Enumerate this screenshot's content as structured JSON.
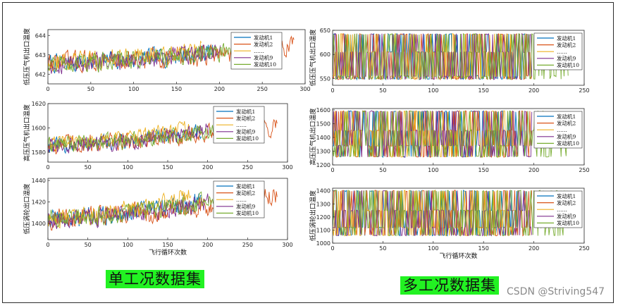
{
  "captions": {
    "single": "单工况数据集",
    "multi": "多工况数据集"
  },
  "watermark": "CSDN @Striving547",
  "colors": {
    "engine_1": "#0072bd",
    "engine_2": "#d95319",
    "ellipsis": "#edb120",
    "engine_9": "#7e2f8e",
    "engine_10": "#77ac30"
  },
  "chart_data": [
    {
      "id": "single-lpc-outlet-temp",
      "type": "line",
      "title": "",
      "ylabel": "低压压气机出口温度",
      "xlabel": "",
      "xlim": [
        0,
        300
      ],
      "ylim": [
        641.5,
        644.3
      ],
      "xticks": [
        0,
        50,
        100,
        150,
        200,
        250,
        300
      ],
      "yticks": [
        642,
        643,
        644
      ],
      "legend_position": "top-right",
      "grid": false,
      "series": [
        {
          "name": "发动机1",
          "color": "#0072bd",
          "x_range": [
            0,
            192
          ],
          "trend": [
            642.55,
            643.15
          ],
          "noise_amplitude": 0.45
        },
        {
          "name": "发动机2",
          "color": "#d95319",
          "x_range": [
            0,
            287
          ],
          "trend": [
            642.6,
            643.35
          ],
          "noise_amplitude": 0.5
        },
        {
          "name": "……",
          "color": "#edb120",
          "x_range": [
            0,
            179
          ],
          "trend": [
            642.6,
            643.3
          ],
          "noise_amplitude": 0.45
        },
        {
          "name": "发动机9",
          "color": "#7e2f8e",
          "x_range": [
            0,
            201
          ],
          "trend": [
            642.5,
            643.15
          ],
          "noise_amplitude": 0.45
        },
        {
          "name": "发动机10",
          "color": "#77ac30",
          "x_range": [
            0,
            229
          ],
          "trend": [
            642.55,
            643.3
          ],
          "noise_amplitude": 0.45
        }
      ]
    },
    {
      "id": "single-hpc-outlet-temp",
      "type": "line",
      "title": "",
      "ylabel": "高压压气机出口温度",
      "xlabel": "",
      "xlim": [
        0,
        300
      ],
      "ylim": [
        1572,
        1620
      ],
      "xticks": [
        0,
        50,
        100,
        150,
        200,
        250,
        300
      ],
      "yticks": [
        1580,
        1600,
        1620
      ],
      "legend_position": "top-right",
      "grid": false,
      "series": [
        {
          "name": "发动机1",
          "color": "#0072bd",
          "x_range": [
            0,
            192
          ],
          "trend": [
            1585,
            1597
          ],
          "noise_amplitude": 6
        },
        {
          "name": "发动机2",
          "color": "#d95319",
          "x_range": [
            0,
            287
          ],
          "trend": [
            1586,
            1602
          ],
          "noise_amplitude": 7
        },
        {
          "name": "……",
          "color": "#edb120",
          "x_range": [
            0,
            179
          ],
          "trend": [
            1586,
            1601
          ],
          "noise_amplitude": 6
        },
        {
          "name": "发动机9",
          "color": "#7e2f8e",
          "x_range": [
            0,
            201
          ],
          "trend": [
            1585,
            1598
          ],
          "noise_amplitude": 6
        },
        {
          "name": "发动机10",
          "color": "#77ac30",
          "x_range": [
            0,
            229
          ],
          "trend": [
            1586,
            1600
          ],
          "noise_amplitude": 6
        }
      ]
    },
    {
      "id": "single-lpt-outlet-temp",
      "type": "line",
      "title": "",
      "ylabel": "低压涡轮出口温度",
      "xlabel": "飞行循环次数",
      "xlim": [
        0,
        300
      ],
      "ylim": [
        1385,
        1442
      ],
      "xticks": [
        0,
        50,
        100,
        150,
        200,
        250,
        300
      ],
      "yticks": [
        1400,
        1420,
        1440
      ],
      "legend_position": "top-right",
      "grid": false,
      "series": [
        {
          "name": "发动机1",
          "color": "#0072bd",
          "x_range": [
            0,
            192
          ],
          "trend": [
            1403,
            1422
          ],
          "noise_amplitude": 8
        },
        {
          "name": "发动机2",
          "color": "#d95319",
          "x_range": [
            0,
            287
          ],
          "trend": [
            1404,
            1428
          ],
          "noise_amplitude": 9
        },
        {
          "name": "……",
          "color": "#edb120",
          "x_range": [
            0,
            179
          ],
          "trend": [
            1404,
            1426
          ],
          "noise_amplitude": 8
        },
        {
          "name": "发动机9",
          "color": "#7e2f8e",
          "x_range": [
            0,
            201
          ],
          "trend": [
            1403,
            1420
          ],
          "noise_amplitude": 8
        },
        {
          "name": "发动机10",
          "color": "#77ac30",
          "x_range": [
            0,
            229
          ],
          "trend": [
            1404,
            1424
          ],
          "noise_amplitude": 8
        }
      ]
    },
    {
      "id": "multi-lpc-outlet-temp",
      "type": "line",
      "title": "",
      "ylabel": "低压压气机出口温度",
      "xlabel": "",
      "xlim": [
        0,
        250
      ],
      "ylim": [
        536,
        650
      ],
      "xticks": [
        0,
        50,
        100,
        150,
        200,
        250
      ],
      "yticks": [
        550,
        600,
        650
      ],
      "legend_position": "top-right",
      "grid": false,
      "operating_levels": [
        549,
        555,
        605,
        642
      ],
      "series": [
        {
          "name": "发动机1",
          "color": "#0072bd",
          "x_range": [
            0,
            192
          ]
        },
        {
          "name": "发动机2",
          "color": "#d95319",
          "x_range": [
            0,
            198
          ]
        },
        {
          "name": "……",
          "color": "#edb120",
          "x_range": [
            0,
            179
          ]
        },
        {
          "name": "发动机9",
          "color": "#7e2f8e",
          "x_range": [
            0,
            198
          ]
        },
        {
          "name": "发动机10",
          "color": "#77ac30",
          "x_range": [
            0,
            234
          ]
        }
      ]
    },
    {
      "id": "multi-hpc-outlet-temp",
      "type": "line",
      "title": "",
      "ylabel": "高压压气机出口温度",
      "xlabel": "",
      "xlim": [
        0,
        250
      ],
      "ylim": [
        1200,
        1610
      ],
      "xticks": [
        0,
        50,
        100,
        150,
        200,
        250
      ],
      "yticks": [
        1200,
        1300,
        1400,
        1500,
        1600
      ],
      "legend_position": "top-right",
      "grid": false,
      "operating_levels": [
        1260,
        1340,
        1450,
        1590
      ],
      "series": [
        {
          "name": "发动机1",
          "color": "#0072bd",
          "x_range": [
            0,
            192
          ]
        },
        {
          "name": "发动机2",
          "color": "#d95319",
          "x_range": [
            0,
            198
          ]
        },
        {
          "name": "……",
          "color": "#edb120",
          "x_range": [
            0,
            179
          ]
        },
        {
          "name": "发动机9",
          "color": "#7e2f8e",
          "x_range": [
            0,
            198
          ]
        },
        {
          "name": "发动机10",
          "color": "#77ac30",
          "x_range": [
            0,
            234
          ]
        }
      ]
    },
    {
      "id": "multi-lpt-outlet-temp",
      "type": "line",
      "title": "",
      "ylabel": "低压涡轮出口温度",
      "xlabel": "飞行循环次数",
      "xlim": [
        0,
        250
      ],
      "ylim": [
        1000,
        1420
      ],
      "xticks": [
        0,
        50,
        100,
        150,
        200,
        250
      ],
      "yticks": [
        1000,
        1100,
        1200,
        1300,
        1400
      ],
      "legend_position": "top-right",
      "grid": false,
      "operating_levels": [
        1060,
        1120,
        1250,
        1400
      ],
      "series": [
        {
          "name": "发动机1",
          "color": "#0072bd",
          "x_range": [
            0,
            192
          ]
        },
        {
          "name": "发动机2",
          "color": "#d95319",
          "x_range": [
            0,
            198
          ]
        },
        {
          "name": "……",
          "color": "#edb120",
          "x_range": [
            0,
            179
          ]
        },
        {
          "name": "发动机9",
          "color": "#7e2f8e",
          "x_range": [
            0,
            198
          ]
        },
        {
          "name": "发动机10",
          "color": "#77ac30",
          "x_range": [
            0,
            234
          ]
        }
      ]
    }
  ]
}
